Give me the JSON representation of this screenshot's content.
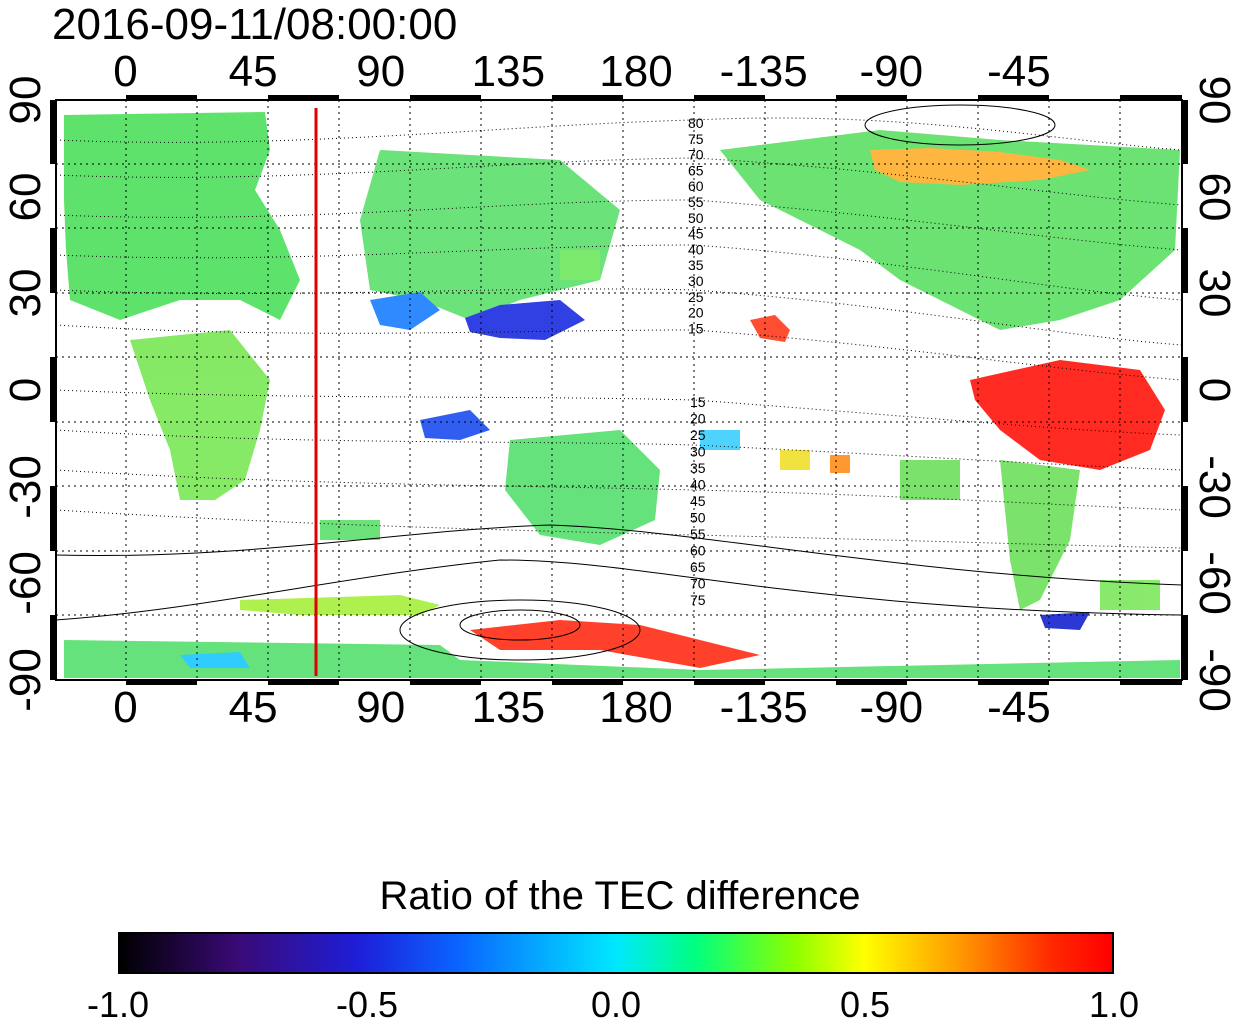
{
  "title": "2016-09-11/08:00:00",
  "map": {
    "lon_ticks": [
      "0",
      "45",
      "90",
      "135",
      "180",
      "-135",
      "-90",
      "-45"
    ],
    "lat_ticks": [
      "90",
      "60",
      "30",
      "0",
      "-30",
      "-60",
      "-90"
    ],
    "meridian_marker_lon_deg": 60,
    "meridian_marker_color": "#e00000",
    "contour_labels_north": [
      "80",
      "75",
      "70",
      "65",
      "60",
      "55",
      "50",
      "45",
      "40",
      "35",
      "30",
      "25",
      "20",
      "15"
    ],
    "contour_labels_south": [
      "15",
      "20",
      "25",
      "30",
      "35",
      "40",
      "45",
      "50",
      "55",
      "60",
      "65",
      "70",
      "75"
    ]
  },
  "colorbar": {
    "title": "Ratio of the TEC difference",
    "ticks": [
      "-1.0",
      "-0.5",
      "0.0",
      "0.5",
      "1.0"
    ],
    "range": [
      -1.0,
      1.0
    ],
    "colors": [
      "#000000",
      "#3a0a78",
      "#1e1ed8",
      "#0a64ff",
      "#00e8ff",
      "#00ff80",
      "#8cff00",
      "#ffff00",
      "#ffa000",
      "#ff2800",
      "#ff0000"
    ]
  }
}
